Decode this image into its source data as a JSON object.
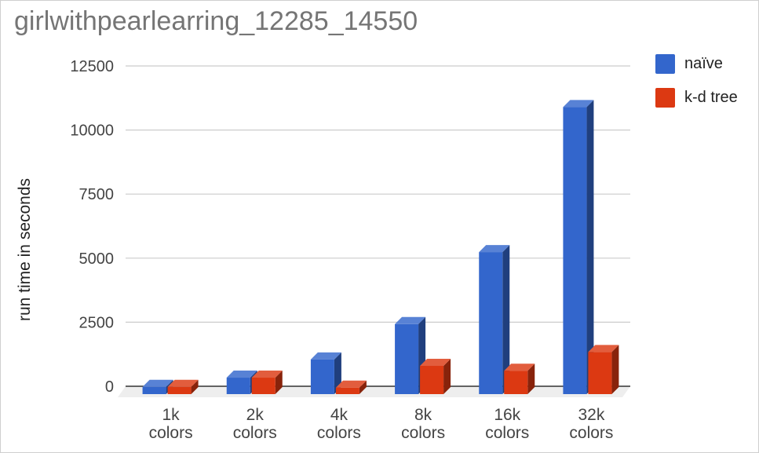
{
  "title": "girlwithpearlearring_12285_14550",
  "legend_colors": {
    "naive": "#3366cc",
    "kdtree": "#dc3912"
  },
  "chart_data": {
    "type": "bar",
    "title": "girlwithpearlearring_12285_14550",
    "ylabel": "run time in seconds",
    "xlabel": "",
    "categories": [
      [
        "1k",
        "colors"
      ],
      [
        "2k",
        "colors"
      ],
      [
        "4k",
        "colors"
      ],
      [
        "8k",
        "colors"
      ],
      [
        "16k",
        "colors"
      ],
      [
        "32k",
        "colors"
      ]
    ],
    "series": [
      {
        "name": "naïve",
        "color": "#3366cc",
        "values": [
          160,
          520,
          1230,
          2610,
          5420,
          11080
        ]
      },
      {
        "name": "k-d tree",
        "color": "#dc3912",
        "values": [
          160,
          520,
          130,
          980,
          790,
          1520
        ]
      }
    ],
    "ylim": [
      0,
      12500
    ],
    "yticks": [
      0,
      2500,
      5000,
      7500,
      10000,
      12500
    ],
    "grid": true,
    "legend_position": "right",
    "style": "3d-bar"
  }
}
